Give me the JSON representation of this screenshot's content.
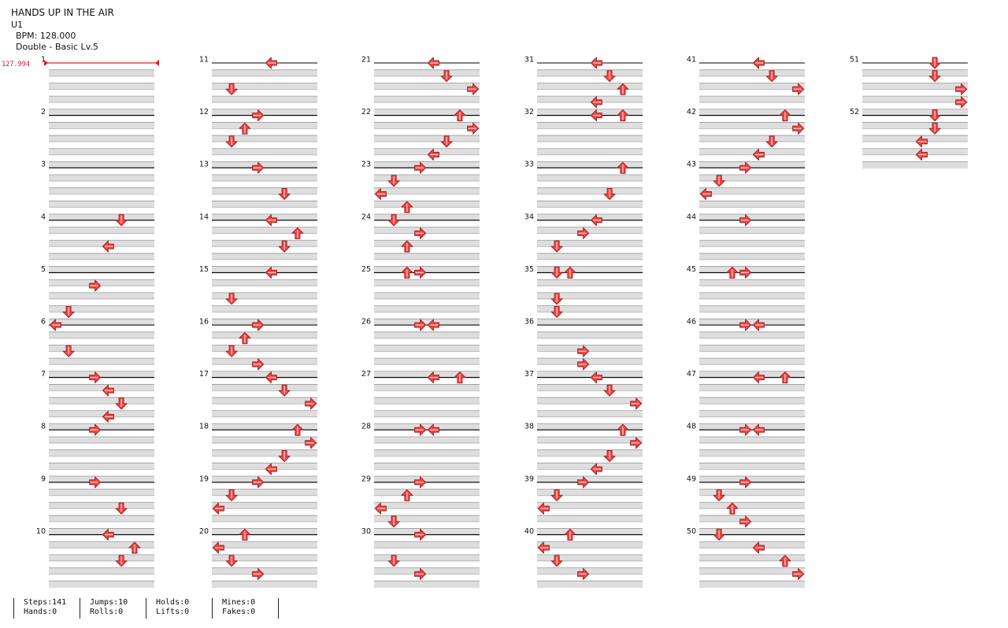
{
  "song": {
    "title": "HANDS UP IN THE AIR",
    "artist": "U1",
    "bpm_label": "BPM: 128.000",
    "difficulty_label": "Double - Basic Lv.5"
  },
  "bpm_marker": "127.994",
  "measures_per_column": 10,
  "lanes": 8,
  "arrow_colors": {
    "fill": "#f04848",
    "stroke": "#b02020",
    "measure_line": "#000000",
    "band": "#dedede"
  },
  "measures": [
    {
      "n": "1",
      "notes": []
    },
    {
      "n": "2",
      "notes": []
    },
    {
      "n": "3",
      "notes": []
    },
    {
      "n": "4",
      "notes": [
        [
          0,
          5,
          "D"
        ],
        [
          2,
          4,
          "L"
        ]
      ]
    },
    {
      "n": "5",
      "notes": [
        [
          1,
          3,
          "R"
        ]
      ]
    },
    {
      "n": "6",
      "notes": [
        [
          -1,
          1,
          "D"
        ],
        [
          0,
          0,
          "L"
        ],
        [
          2,
          1,
          "D"
        ]
      ]
    },
    {
      "n": "7",
      "notes": [
        [
          0,
          3,
          "R"
        ],
        [
          1,
          4,
          "L"
        ],
        [
          2,
          5,
          "D"
        ],
        [
          3,
          4,
          "L"
        ]
      ]
    },
    {
      "n": "8",
      "notes": [
        [
          0,
          3,
          "R"
        ]
      ]
    },
    {
      "n": "9",
      "notes": [
        [
          0,
          3,
          "R"
        ],
        [
          2,
          5,
          "D"
        ]
      ]
    },
    {
      "n": "10",
      "notes": [
        [
          0,
          4,
          "L"
        ],
        [
          1,
          6,
          "U"
        ],
        [
          2,
          5,
          "D"
        ]
      ]
    },
    {
      "n": "11",
      "notes": [
        [
          0,
          4,
          "L"
        ],
        [
          2,
          1,
          "D"
        ]
      ]
    },
    {
      "n": "12",
      "notes": [
        [
          0,
          3,
          "R"
        ],
        [
          1,
          2,
          "U"
        ],
        [
          2,
          1,
          "D"
        ]
      ]
    },
    {
      "n": "13",
      "notes": [
        [
          0,
          3,
          "R"
        ],
        [
          2,
          5,
          "D"
        ]
      ]
    },
    {
      "n": "14",
      "notes": [
        [
          0,
          4,
          "L"
        ],
        [
          1,
          6,
          "U"
        ],
        [
          2,
          5,
          "D"
        ]
      ]
    },
    {
      "n": "15",
      "notes": [
        [
          0,
          4,
          "L"
        ],
        [
          2,
          1,
          "D"
        ]
      ]
    },
    {
      "n": "16",
      "notes": [
        [
          0,
          3,
          "R"
        ],
        [
          1,
          2,
          "U"
        ],
        [
          2,
          1,
          "D"
        ],
        [
          3,
          3,
          "R"
        ]
      ]
    },
    {
      "n": "17",
      "notes": [
        [
          0,
          4,
          "L"
        ],
        [
          1,
          5,
          "D"
        ],
        [
          2,
          7,
          "R"
        ]
      ]
    },
    {
      "n": "18",
      "notes": [
        [
          0,
          6,
          "U"
        ],
        [
          1,
          7,
          "R"
        ],
        [
          2,
          5,
          "D"
        ],
        [
          3,
          4,
          "L"
        ]
      ]
    },
    {
      "n": "19",
      "notes": [
        [
          0,
          3,
          "R"
        ],
        [
          1,
          1,
          "D"
        ],
        [
          2,
          0,
          "L"
        ]
      ]
    },
    {
      "n": "20",
      "notes": [
        [
          0,
          2,
          "U"
        ],
        [
          1,
          0,
          "L"
        ],
        [
          2,
          1,
          "D"
        ],
        [
          3,
          3,
          "R"
        ]
      ]
    },
    {
      "n": "21",
      "notes": [
        [
          0,
          4,
          "L"
        ],
        [
          1,
          5,
          "D"
        ],
        [
          2,
          7,
          "R"
        ]
      ]
    },
    {
      "n": "22",
      "notes": [
        [
          0,
          6,
          "U"
        ],
        [
          1,
          7,
          "R"
        ],
        [
          2,
          5,
          "D"
        ],
        [
          3,
          4,
          "L"
        ]
      ]
    },
    {
      "n": "23",
      "notes": [
        [
          0,
          3,
          "R"
        ],
        [
          1,
          1,
          "D"
        ],
        [
          2,
          0,
          "L"
        ],
        [
          3,
          2,
          "U"
        ]
      ]
    },
    {
      "n": "24",
      "notes": [
        [
          0,
          1,
          "D"
        ],
        [
          1,
          3,
          "R"
        ],
        [
          2,
          2,
          "U"
        ]
      ]
    },
    {
      "n": "25",
      "notes": [
        [
          0,
          2,
          "U"
        ],
        [
          0,
          3,
          "R"
        ]
      ]
    },
    {
      "n": "26",
      "notes": [
        [
          0,
          3,
          "R"
        ],
        [
          0,
          4,
          "L"
        ]
      ]
    },
    {
      "n": "27",
      "notes": [
        [
          0,
          4,
          "L"
        ],
        [
          0,
          6,
          "U"
        ]
      ]
    },
    {
      "n": "28",
      "notes": [
        [
          0,
          3,
          "R"
        ],
        [
          0,
          4,
          "L"
        ]
      ]
    },
    {
      "n": "29",
      "notes": [
        [
          0,
          3,
          "R"
        ],
        [
          1,
          2,
          "U"
        ],
        [
          2,
          0,
          "L"
        ],
        [
          3,
          1,
          "D"
        ]
      ]
    },
    {
      "n": "30",
      "notes": [
        [
          0,
          3,
          "R"
        ],
        [
          2,
          1,
          "D"
        ],
        [
          3,
          3,
          "R"
        ]
      ]
    },
    {
      "n": "31",
      "notes": [
        [
          0,
          4,
          "L"
        ],
        [
          1,
          5,
          "D"
        ],
        [
          2,
          6,
          "U"
        ],
        [
          3,
          4,
          "L"
        ]
      ]
    },
    {
      "n": "32",
      "notes": [
        [
          0,
          4,
          "L"
        ],
        [
          0,
          6,
          "U"
        ]
      ]
    },
    {
      "n": "33",
      "notes": [
        [
          0,
          6,
          "U"
        ],
        [
          2,
          5,
          "D"
        ]
      ]
    },
    {
      "n": "34",
      "notes": [
        [
          0,
          4,
          "L"
        ],
        [
          1,
          3,
          "R"
        ],
        [
          2,
          1,
          "D"
        ]
      ]
    },
    {
      "n": "35",
      "notes": [
        [
          0,
          1,
          "D"
        ],
        [
          0,
          2,
          "U"
        ],
        [
          2,
          1,
          "D"
        ],
        [
          3,
          1,
          "D"
        ]
      ]
    },
    {
      "n": "36",
      "notes": [
        [
          2,
          3,
          "R"
        ],
        [
          3,
          3,
          "R"
        ]
      ]
    },
    {
      "n": "37",
      "notes": [
        [
          0,
          4,
          "L"
        ],
        [
          1,
          5,
          "D"
        ],
        [
          2,
          7,
          "R"
        ]
      ]
    },
    {
      "n": "38",
      "notes": [
        [
          0,
          6,
          "U"
        ],
        [
          1,
          7,
          "R"
        ],
        [
          2,
          5,
          "D"
        ],
        [
          3,
          4,
          "L"
        ]
      ]
    },
    {
      "n": "39",
      "notes": [
        [
          0,
          3,
          "R"
        ],
        [
          1,
          1,
          "D"
        ],
        [
          2,
          0,
          "L"
        ]
      ]
    },
    {
      "n": "40",
      "notes": [
        [
          0,
          2,
          "U"
        ],
        [
          1,
          0,
          "L"
        ],
        [
          2,
          1,
          "D"
        ],
        [
          3,
          3,
          "R"
        ]
      ]
    },
    {
      "n": "41",
      "notes": [
        [
          0,
          4,
          "L"
        ],
        [
          1,
          5,
          "D"
        ],
        [
          2,
          7,
          "R"
        ]
      ]
    },
    {
      "n": "42",
      "notes": [
        [
          0,
          6,
          "U"
        ],
        [
          1,
          7,
          "R"
        ],
        [
          2,
          5,
          "D"
        ],
        [
          3,
          4,
          "L"
        ]
      ]
    },
    {
      "n": "43",
      "notes": [
        [
          0,
          3,
          "R"
        ],
        [
          1,
          1,
          "D"
        ],
        [
          2,
          0,
          "L"
        ]
      ]
    },
    {
      "n": "44",
      "notes": [
        [
          0,
          3,
          "R"
        ]
      ]
    },
    {
      "n": "45",
      "notes": [
        [
          0,
          2,
          "U"
        ],
        [
          0,
          3,
          "R"
        ]
      ]
    },
    {
      "n": "46",
      "notes": [
        [
          0,
          3,
          "R"
        ],
        [
          0,
          4,
          "L"
        ]
      ]
    },
    {
      "n": "47",
      "notes": [
        [
          0,
          4,
          "L"
        ],
        [
          0,
          6,
          "U"
        ]
      ]
    },
    {
      "n": "48",
      "notes": [
        [
          0,
          3,
          "R"
        ],
        [
          0,
          4,
          "L"
        ]
      ]
    },
    {
      "n": "49",
      "notes": [
        [
          0,
          3,
          "R"
        ],
        [
          1,
          1,
          "D"
        ],
        [
          2,
          2,
          "U"
        ],
        [
          3,
          3,
          "R"
        ]
      ]
    },
    {
      "n": "50",
      "notes": [
        [
          0,
          1,
          "D"
        ],
        [
          1,
          4,
          "L"
        ],
        [
          2,
          6,
          "U"
        ],
        [
          3,
          7,
          "R"
        ]
      ]
    },
    {
      "n": "51",
      "notes": [
        [
          0,
          5,
          "D"
        ],
        [
          1,
          5,
          "D"
        ],
        [
          2,
          7,
          "R"
        ],
        [
          3,
          7,
          "R"
        ]
      ]
    },
    {
      "n": "52",
      "notes": [
        [
          0,
          5,
          "D"
        ],
        [
          1,
          5,
          "D"
        ],
        [
          2,
          4,
          "L"
        ],
        [
          3,
          4,
          "L"
        ]
      ]
    }
  ],
  "stats": [
    {
      "top": "Steps:141",
      "bottom": "Hands:0"
    },
    {
      "top": "Jumps:10",
      "bottom": "Rolls:0"
    },
    {
      "top": "Holds:0",
      "bottom": "Lifts:0"
    },
    {
      "top": "Mines:0",
      "bottom": "Fakes:0"
    }
  ]
}
